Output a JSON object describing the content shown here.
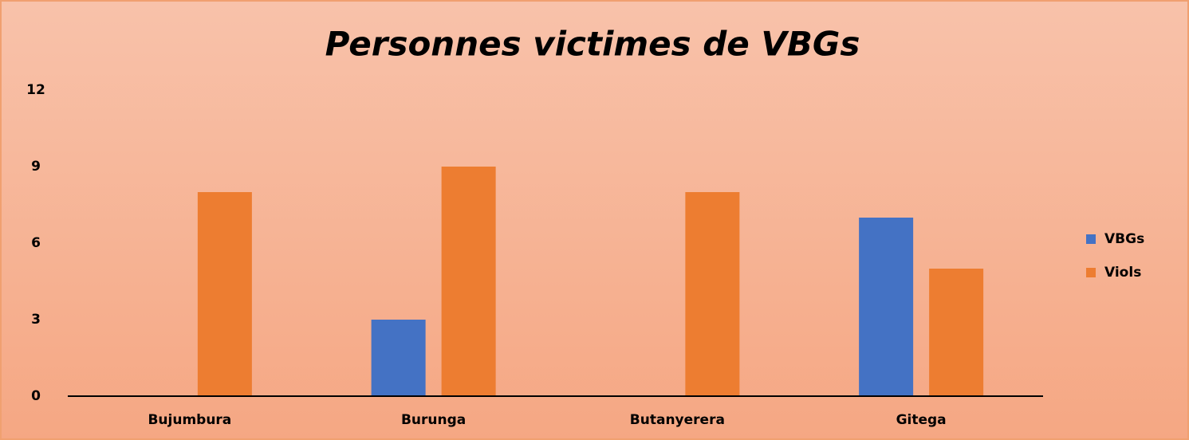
{
  "chart_data": {
    "type": "bar",
    "title": "Personnes victimes de VBGs",
    "categories": [
      "Bujumbura",
      "Burunga",
      "Butanyerera",
      "Gitega"
    ],
    "series": [
      {
        "name": "VBGs",
        "color": "#4472c4",
        "values": [
          0,
          3,
          0,
          7
        ]
      },
      {
        "name": "Viols",
        "color": "#ed7d31",
        "values": [
          8,
          9,
          8,
          5
        ]
      }
    ],
    "ylim": [
      0,
      12
    ],
    "yticks": [
      0,
      3,
      6,
      9,
      12
    ],
    "grid": false,
    "legend": "right"
  }
}
